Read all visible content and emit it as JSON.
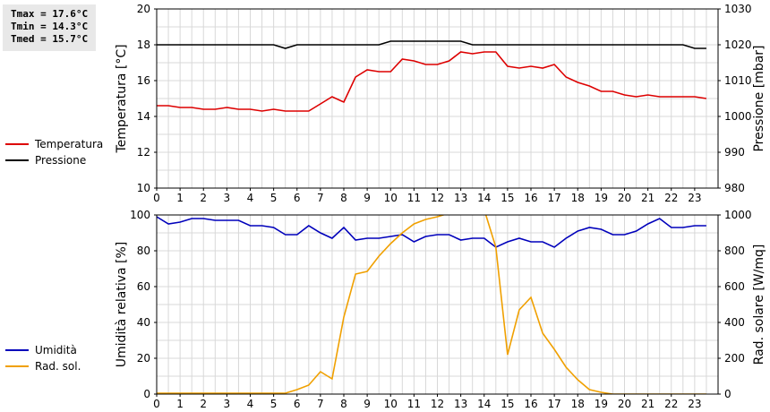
{
  "stats": {
    "tmax": "Tmax = 17.6°C",
    "tmin": "Tmin = 14.3°C",
    "tmed": "Tmed = 15.7°C"
  },
  "colors": {
    "temperatura": "#dd0000",
    "pressione": "#000000",
    "umidita": "#0000bb",
    "radiazione": "#f0a000",
    "grid": "#d8d8d8"
  },
  "chart_data": [
    {
      "type": "line",
      "x_ticks": [
        "0",
        "1",
        "2",
        "3",
        "4",
        "5",
        "6",
        "7",
        "8",
        "9",
        "10",
        "11",
        "12",
        "13",
        "14",
        "15",
        "16",
        "17",
        "18",
        "19",
        "20",
        "21",
        "22",
        "23"
      ],
      "xlim": [
        0,
        24
      ],
      "ylabel_left": "Temperatura [°C]",
      "ylabel_right": "Pressione [mbar]",
      "ylim_left": [
        10,
        20
      ],
      "ylim_right": [
        980,
        1030
      ],
      "y_ticks_left": [
        "10",
        "12",
        "14",
        "16",
        "18",
        "20"
      ],
      "y_ticks_right": [
        "980",
        "990",
        "1000",
        "1010",
        "1020",
        "1030"
      ],
      "grid": true,
      "legend_position": "left",
      "series": [
        {
          "name": "Temperatura",
          "axis": "left",
          "x": [
            0,
            0.5,
            1,
            1.5,
            2,
            2.5,
            3,
            3.5,
            4,
            4.5,
            5,
            5.5,
            6,
            6.5,
            7,
            7.5,
            8,
            8.5,
            9,
            9.5,
            10,
            10.5,
            11,
            11.5,
            12,
            12.5,
            13,
            13.5,
            14,
            14.5,
            15,
            15.5,
            16,
            16.5,
            17,
            17.5,
            18,
            18.5,
            19,
            19.5,
            20,
            20.5,
            21,
            21.5,
            22,
            22.5,
            23,
            23.5
          ],
          "values": [
            14.6,
            14.6,
            14.5,
            14.5,
            14.4,
            14.4,
            14.5,
            14.4,
            14.4,
            14.3,
            14.4,
            14.3,
            14.3,
            14.3,
            14.7,
            15.1,
            14.8,
            16.2,
            16.6,
            16.5,
            16.5,
            17.2,
            17.1,
            16.9,
            16.9,
            17.1,
            17.6,
            17.5,
            17.6,
            17.6,
            16.8,
            16.7,
            16.8,
            16.7,
            16.9,
            16.2,
            15.9,
            15.7,
            15.4,
            15.4,
            15.2,
            15.1,
            15.2,
            15.1,
            15.1,
            15.1,
            15.1,
            15.0
          ]
        },
        {
          "name": "Pressione",
          "axis": "right",
          "x": [
            0,
            0.5,
            1,
            1.5,
            2,
            2.5,
            3,
            3.5,
            4,
            4.5,
            5,
            5.5,
            6,
            6.5,
            7,
            7.5,
            8,
            8.5,
            9,
            9.5,
            10,
            10.5,
            11,
            11.5,
            12,
            12.5,
            13,
            13.5,
            14,
            14.5,
            15,
            15.5,
            16,
            16.5,
            17,
            17.5,
            18,
            18.5,
            19,
            19.5,
            20,
            20.5,
            21,
            21.5,
            22,
            22.5,
            23,
            23.5
          ],
          "values": [
            1020,
            1020,
            1020,
            1020,
            1020,
            1020,
            1020,
            1020,
            1020,
            1020,
            1020,
            1019,
            1020,
            1020,
            1020,
            1020,
            1020,
            1020,
            1020,
            1020,
            1021,
            1021,
            1021,
            1021,
            1021,
            1021,
            1021,
            1020,
            1020,
            1020,
            1020,
            1020,
            1020,
            1020,
            1020,
            1020,
            1020,
            1020,
            1020,
            1020,
            1020,
            1020,
            1020,
            1020,
            1020,
            1020,
            1019,
            1019
          ]
        }
      ]
    },
    {
      "type": "line",
      "x_ticks": [
        "0",
        "1",
        "2",
        "3",
        "4",
        "5",
        "6",
        "7",
        "8",
        "9",
        "10",
        "11",
        "12",
        "13",
        "14",
        "15",
        "16",
        "17",
        "18",
        "19",
        "20",
        "21",
        "22",
        "23"
      ],
      "xlim": [
        0,
        24
      ],
      "ylabel_left": "Umidità relativa [%]",
      "ylabel_right": "Rad. solare [W/mq]",
      "ylim_left": [
        0,
        100
      ],
      "ylim_right": [
        0,
        1000
      ],
      "y_ticks_left": [
        "0",
        "20",
        "40",
        "60",
        "80",
        "100"
      ],
      "y_ticks_right": [
        "0",
        "200",
        "400",
        "600",
        "800",
        "1000"
      ],
      "grid": true,
      "legend_position": "left",
      "series": [
        {
          "name": "Umidità",
          "axis": "left",
          "x": [
            0,
            0.5,
            1,
            1.5,
            2,
            2.5,
            3,
            3.5,
            4,
            4.5,
            5,
            5.5,
            6,
            6.5,
            7,
            7.5,
            8,
            8.5,
            9,
            9.5,
            10,
            10.5,
            11,
            11.5,
            12,
            12.5,
            13,
            13.5,
            14,
            14.5,
            15,
            15.5,
            16,
            16.5,
            17,
            17.5,
            18,
            18.5,
            19,
            19.5,
            20,
            20.5,
            21,
            21.5,
            22,
            22.5,
            23,
            23.5
          ],
          "values": [
            99,
            95,
            96,
            98,
            98,
            97,
            97,
            97,
            94,
            94,
            93,
            89,
            89,
            94,
            90,
            87,
            93,
            86,
            87,
            87,
            88,
            89,
            85,
            88,
            89,
            89,
            86,
            87,
            87,
            82,
            85,
            87,
            85,
            85,
            82,
            87,
            91,
            93,
            92,
            89,
            89,
            91,
            95,
            98,
            93,
            93,
            94,
            94
          ]
        },
        {
          "name": "Rad. sol.",
          "axis": "right",
          "x": [
            0,
            0.5,
            1,
            1.5,
            2,
            2.5,
            3,
            3.5,
            4,
            4.5,
            5,
            5.5,
            6,
            6.5,
            7,
            7.5,
            8,
            8.5,
            9,
            9.5,
            10,
            10.5,
            11,
            11.5,
            12,
            12.5,
            13,
            13.5,
            14,
            14.5,
            15,
            15.5,
            16,
            16.5,
            17,
            17.5,
            18,
            18.5,
            19,
            19.5,
            20,
            20.5,
            21,
            21.5,
            22,
            22.5,
            23,
            23.5
          ],
          "values": [
            5,
            5,
            5,
            5,
            5,
            5,
            5,
            5,
            5,
            5,
            5,
            5,
            25,
            50,
            125,
            85,
            430,
            670,
            685,
            770,
            840,
            900,
            950,
            975,
            990,
            1010,
            1030,
            1030,
            1030,
            820,
            220,
            470,
            540,
            340,
            250,
            150,
            80,
            25,
            10,
            0,
            0,
            0,
            0,
            0,
            0,
            0,
            0,
            0
          ]
        }
      ]
    }
  ]
}
